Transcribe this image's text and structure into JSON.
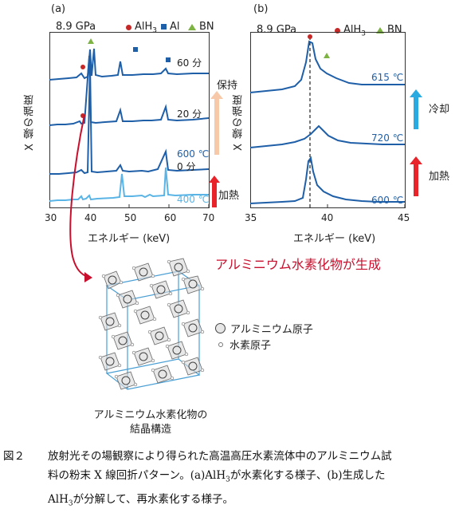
{
  "panel_a": {
    "label": "(a)",
    "pressure": "8.9 GPa",
    "legend": [
      {
        "marker": "circle",
        "color": "#c62828",
        "label": "AlH",
        "sub": "3"
      },
      {
        "marker": "square",
        "color": "#1f5fa8",
        "label": "Al",
        "sub": ""
      },
      {
        "marker": "triangle",
        "color": "#7cb342",
        "label": "BN",
        "sub": ""
      }
    ],
    "ylabel": "X 線の強度",
    "xlabel": "エネルギー (keV)",
    "xticks": [
      "30",
      "40",
      "50",
      "60",
      "70"
    ],
    "trace_labels": [
      "60 分",
      "20 分",
      "600 ℃",
      "0 分",
      "400 ℃"
    ],
    "side_labels": [
      "保持",
      "加熱"
    ]
  },
  "panel_b": {
    "label": "(b)",
    "pressure": "8.9 GPa",
    "legend": [
      {
        "marker": "circle",
        "color": "#c62828",
        "label": "AlH",
        "sub": "3"
      },
      {
        "marker": "triangle",
        "color": "#7cb342",
        "label": "BN",
        "sub": ""
      }
    ],
    "ylabel": "X 線の強度",
    "xlabel": "エネルギー (keV)",
    "xticks": [
      "35",
      "40",
      "45"
    ],
    "trace_labels": [
      "615 ℃",
      "720 ℃",
      "600 ℃"
    ],
    "side_labels": [
      "冷却",
      "加熱"
    ]
  },
  "callout": "アルミニウム水素化物が生成",
  "structure": {
    "legend": [
      {
        "marker": "large-circle",
        "label": "アルミニウム原子"
      },
      {
        "marker": "small-circle",
        "label": "水素原子"
      }
    ],
    "title_line1": "アルミニウム水素化物の",
    "title_line2": "結晶構造"
  },
  "caption": {
    "label": "図２",
    "line1": "放射光その場観察により得られた高温高圧水素流体中のアルミニウム試",
    "line2": "料の粉末 X 線回折パターン。(a)AlH",
    "line2_sub": "3",
    "line2_rest": "が水素化する様子、(b)生成した",
    "line3": "AlH",
    "line3_sub": "3",
    "line3_rest": "が分解して、再水素化する様子。"
  },
  "colors": {
    "trace_dark": "#1f5fa8",
    "trace_light": "#5ab4e5",
    "arrow_red": "#e8242a",
    "arrow_peach": "#f7c9a8",
    "arrow_cyan": "#29abe2",
    "callout_red": "#c8102e"
  }
}
